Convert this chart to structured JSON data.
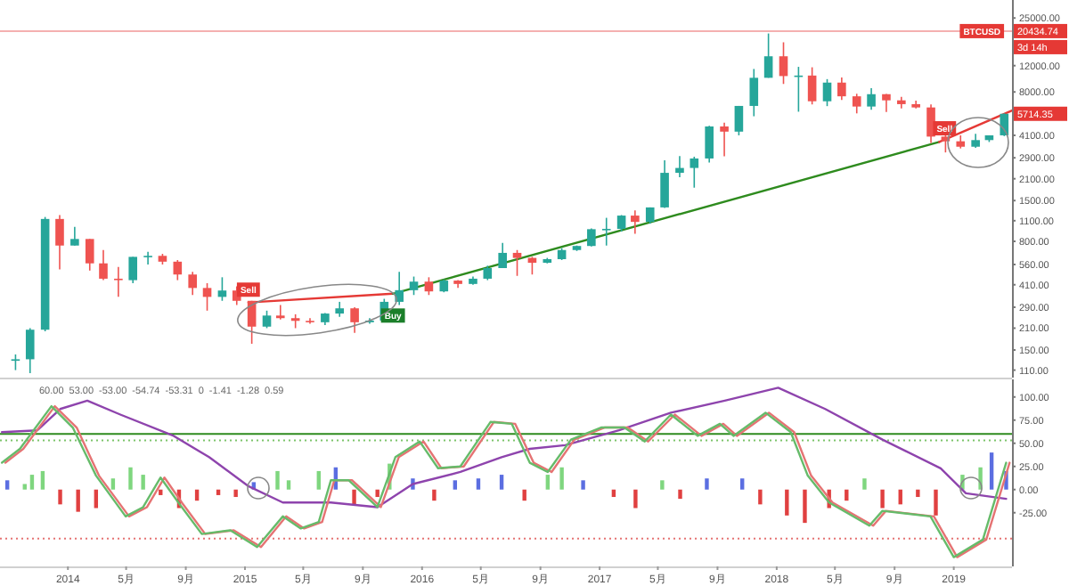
{
  "chart_data": [
    {
      "type": "candlestick",
      "log": true,
      "tick_labels": "y",
      "xlim": [
        "2013-08-14",
        "2019-05-01"
      ],
      "ylim": [
        98,
        33000
      ],
      "yticks": [
        {
          "value": 25000,
          "label": "25000.00"
        },
        {
          "value": 12000,
          "label": "12000.00"
        },
        {
          "value": 8000,
          "label": "8000.00"
        },
        {
          "value": 4100,
          "label": "4100.00"
        },
        {
          "value": 2900,
          "label": "2900.00"
        },
        {
          "value": 2100,
          "label": "2100.00"
        },
        {
          "value": 1500,
          "label": "1500.00"
        },
        {
          "value": 1100,
          "label": "1100.00"
        },
        {
          "value": 800,
          "label": "800.00"
        },
        {
          "value": 560,
          "label": "560.00"
        },
        {
          "value": 410,
          "label": "410.00"
        },
        {
          "value": 290,
          "label": "290.00"
        },
        {
          "value": 210,
          "label": "210.00"
        },
        {
          "value": 150,
          "label": "150.00"
        },
        {
          "value": 110,
          "label": "110.00"
        }
      ],
      "x": [
        "2013-09-15",
        "2013-10-15",
        "2013-11-15",
        "2013-12-15",
        "2014-01-15",
        "2014-02-15",
        "2014-03-15",
        "2014-04-15",
        "2014-05-15",
        "2014-06-15",
        "2014-07-15",
        "2014-08-15",
        "2014-09-15",
        "2014-10-15",
        "2014-11-15",
        "2014-12-15",
        "2015-01-15",
        "2015-02-15",
        "2015-03-15",
        "2015-04-15",
        "2015-05-15",
        "2015-06-15",
        "2015-07-15",
        "2015-08-15",
        "2015-09-15",
        "2015-10-15",
        "2015-11-15",
        "2015-12-15",
        "2016-01-15",
        "2016-02-15",
        "2016-03-15",
        "2016-04-15",
        "2016-05-15",
        "2016-06-15",
        "2016-07-15",
        "2016-08-15",
        "2016-09-15",
        "2016-10-15",
        "2016-11-15",
        "2016-12-15",
        "2017-01-15",
        "2017-02-15",
        "2017-03-15",
        "2017-04-15",
        "2017-05-15",
        "2017-06-15",
        "2017-07-15",
        "2017-08-15",
        "2017-09-15",
        "2017-10-15",
        "2017-11-15",
        "2017-12-15",
        "2018-01-15",
        "2018-02-15",
        "2018-03-15",
        "2018-04-15",
        "2018-05-15",
        "2018-06-15",
        "2018-07-15",
        "2018-08-15",
        "2018-09-15",
        "2018-10-15",
        "2018-11-15",
        "2018-12-15",
        "2019-01-15",
        "2019-02-15",
        "2019-03-15",
        "2019-04-15"
      ],
      "ohlc": [
        [
          127,
          140,
          110,
          130
        ],
        [
          130,
          210,
          105,
          205
        ],
        [
          205,
          1165,
          200,
          1130
        ],
        [
          1130,
          1200,
          520,
          750
        ],
        [
          750,
          1000,
          750,
          830
        ],
        [
          830,
          830,
          510,
          570
        ],
        [
          570,
          700,
          440,
          450
        ],
        [
          450,
          540,
          340,
          440
        ],
        [
          440,
          630,
          420,
          630
        ],
        [
          630,
          680,
          560,
          640
        ],
        [
          640,
          660,
          560,
          585
        ],
        [
          585,
          600,
          440,
          480
        ],
        [
          480,
          500,
          350,
          390
        ],
        [
          390,
          420,
          275,
          340
        ],
        [
          340,
          460,
          320,
          375
        ],
        [
          375,
          400,
          300,
          320
        ],
        [
          320,
          320,
          165,
          215
        ],
        [
          215,
          275,
          210,
          255
        ],
        [
          255,
          300,
          240,
          245
        ],
        [
          245,
          260,
          210,
          235
        ],
        [
          235,
          245,
          225,
          230
        ],
        [
          230,
          265,
          220,
          263
        ],
        [
          263,
          315,
          250,
          285
        ],
        [
          285,
          290,
          195,
          230
        ],
        [
          230,
          245,
          225,
          236
        ],
        [
          236,
          330,
          235,
          315
        ],
        [
          315,
          500,
          300,
          377
        ],
        [
          377,
          465,
          350,
          430
        ],
        [
          430,
          460,
          350,
          370
        ],
        [
          370,
          445,
          365,
          437
        ],
        [
          437,
          440,
          390,
          415
        ],
        [
          415,
          465,
          410,
          450
        ],
        [
          450,
          550,
          440,
          530
        ],
        [
          530,
          780,
          530,
          670
        ],
        [
          670,
          700,
          470,
          620
        ],
        [
          620,
          630,
          480,
          575
        ],
        [
          575,
          620,
          570,
          608
        ],
        [
          608,
          720,
          600,
          700
        ],
        [
          700,
          750,
          690,
          745
        ],
        [
          745,
          975,
          740,
          965
        ],
        [
          965,
          1150,
          750,
          970
        ],
        [
          970,
          1200,
          930,
          1190
        ],
        [
          1190,
          1290,
          900,
          1080
        ],
        [
          1080,
          1350,
          1050,
          1350
        ],
        [
          1350,
          2790,
          1340,
          2300
        ],
        [
          2300,
          2980,
          2150,
          2480
        ],
        [
          2480,
          2950,
          1830,
          2870
        ],
        [
          2870,
          4750,
          2700,
          4700
        ],
        [
          4700,
          4980,
          2970,
          4340
        ],
        [
          4340,
          6450,
          4100,
          6450
        ],
        [
          6450,
          11400,
          5500,
          9950
        ],
        [
          9950,
          19700,
          9950,
          13860
        ],
        [
          13860,
          17200,
          9050,
          10220
        ],
        [
          10220,
          11780,
          5900,
          10300
        ],
        [
          10300,
          11700,
          6600,
          6930
        ],
        [
          6930,
          9750,
          6430,
          9240
        ],
        [
          9240,
          10000,
          7060,
          7480
        ],
        [
          7480,
          7780,
          5750,
          6390
        ],
        [
          6390,
          8490,
          6070,
          7730
        ],
        [
          7730,
          7760,
          5880,
          7030
        ],
        [
          7030,
          7420,
          6200,
          6630
        ],
        [
          6630,
          7000,
          6200,
          6300
        ],
        [
          6300,
          6600,
          3650,
          4020
        ],
        [
          4020,
          4200,
          3150,
          3740
        ],
        [
          3740,
          4100,
          3350,
          3440
        ],
        [
          3440,
          4200,
          3380,
          3810
        ],
        [
          3810,
          4100,
          3700,
          4100
        ],
        [
          4100,
          5750,
          4050,
          5714.35
        ]
      ],
      "series": [
        {
          "type": "line",
          "color": "#e53935",
          "x": [
            "2015-01-08",
            "2015-11-02"
          ],
          "values": [
            312,
            357
          ]
        },
        {
          "type": "line",
          "color": "#2e8b1e",
          "x": [
            "2015-11-02",
            "2018-12-02"
          ],
          "values": [
            357,
            3700
          ]
        },
        {
          "type": "line",
          "color": "#e53935",
          "x": [
            "2018-12-02",
            "2019-05-01"
          ],
          "values": [
            3700,
            6010
          ]
        }
      ],
      "ref_lines": [
        {
          "axis": "y",
          "value": 20434.74,
          "label": "20434.74",
          "color": "#f4b0b0",
          "line_style": "solid"
        }
      ],
      "annotations": [
        {
          "text": "Sell",
          "x": "2015-01-08",
          "y": 380
        },
        {
          "text": "Buy",
          "x": "2015-11-02",
          "y": 255
        },
        {
          "text": "Sell",
          "x": "2018-12-13",
          "y": 4570
        },
        {
          "text": "BTCUSD",
          "x": "2019-02-28",
          "y": 20434.74
        },
        "3d 14h",
        "5714.35"
      ]
    },
    {
      "type": "line",
      "xlim": [
        "2013-08-14",
        "2019-05-01"
      ],
      "ylim": [
        -83,
        119
      ],
      "xticks": [
        {
          "value": "2014-01-01",
          "label": "2014"
        },
        {
          "value": "2014-05-01",
          "label": "5月"
        },
        {
          "value": "2014-09-01",
          "label": "9月"
        },
        {
          "value": "2015-01-01",
          "label": "2015"
        },
        {
          "value": "2015-05-01",
          "label": "5月"
        },
        {
          "value": "2015-09-01",
          "label": "9月"
        },
        {
          "value": "2016-01-01",
          "label": "2016"
        },
        {
          "value": "2016-05-01",
          "label": "5月"
        },
        {
          "value": "2016-09-01",
          "label": "9月"
        },
        {
          "value": "2017-01-01",
          "label": "2017"
        },
        {
          "value": "2017-05-01",
          "label": "5月"
        },
        {
          "value": "2017-09-01",
          "label": "9月"
        },
        {
          "value": "2018-01-01",
          "label": "2018"
        },
        {
          "value": "2018-05-01",
          "label": "5月"
        },
        {
          "value": "2018-09-01",
          "label": "9月"
        },
        {
          "value": "2019-01-01",
          "label": "2019"
        }
      ],
      "yticks": [
        {
          "value": 100,
          "label": "100.00"
        },
        {
          "value": 75,
          "label": "75.00"
        },
        {
          "value": 50,
          "label": "50.00"
        },
        {
          "value": 25,
          "label": "25.00"
        },
        {
          "value": 0,
          "label": "0.00"
        },
        {
          "value": -25,
          "label": "-25.00"
        }
      ],
      "series": [
        {
          "type": "bar",
          "x": [
            "2013-08-29",
            "2013-10-04",
            "2013-10-19",
            "2013-11-10",
            "2013-12-16",
            "2014-01-22",
            "2014-02-28",
            "2014-04-04",
            "2014-05-10",
            "2014-06-05",
            "2014-07-11",
            "2014-08-18",
            "2014-09-24",
            "2014-11-07",
            "2014-12-13",
            "2015-01-19",
            "2015-03-09",
            "2015-04-01",
            "2015-06-02",
            "2015-07-07",
            "2015-08-14",
            "2015-10-01",
            "2015-10-26",
            "2015-12-13",
            "2016-01-26",
            "2016-03-09",
            "2016-04-26",
            "2016-06-13",
            "2016-07-30",
            "2016-09-16",
            "2016-10-15",
            "2016-11-28",
            "2017-01-30",
            "2017-03-16",
            "2017-05-10",
            "2017-06-16",
            "2017-08-10",
            "2017-10-22",
            "2017-11-28",
            "2018-01-22",
            "2018-02-28",
            "2018-04-19",
            "2018-05-25",
            "2018-07-01",
            "2018-08-07",
            "2018-09-13",
            "2018-10-19",
            "2018-11-25",
            "2019-01-19",
            "2019-02-25",
            "2019-03-20",
            "2019-04-19"
          ],
          "values": [
            10,
            6,
            16,
            20,
            -16,
            -24,
            -20,
            12,
            24,
            16,
            -6,
            -20,
            -12,
            -6,
            -8,
            8,
            20,
            10,
            20,
            24,
            -16,
            -8,
            28,
            12,
            -12,
            10,
            12,
            16,
            -12,
            16,
            24,
            10,
            -8,
            -20,
            10,
            -10,
            12,
            12,
            -16,
            -28,
            -36,
            -20,
            -12,
            12,
            -20,
            -16,
            -8,
            -28,
            16,
            24,
            40,
            20
          ],
          "colors": [
            "#5b6ee1",
            "#7fd67f",
            "#7fd67f",
            "#7fd67f",
            "#e04040",
            "#e04040",
            "#e04040",
            "#7fd67f",
            "#7fd67f",
            "#7fd67f",
            "#e04040",
            "#e04040",
            "#e04040",
            "#e04040",
            "#e04040",
            "#5b6ee1",
            "#7fd67f",
            "#7fd67f",
            "#7fd67f",
            "#5b6ee1",
            "#e04040",
            "#e04040",
            "#7fd67f",
            "#5b6ee1",
            "#e04040",
            "#5b6ee1",
            "#5b6ee1",
            "#5b6ee1",
            "#e04040",
            "#7fd67f",
            "#7fd67f",
            "#5b6ee1",
            "#e04040",
            "#e04040",
            "#7fd67f",
            "#e04040",
            "#5b6ee1",
            "#5b6ee1",
            "#e04040",
            "#e04040",
            "#e04040",
            "#e04040",
            "#e04040",
            "#7fd67f",
            "#e04040",
            "#e04040",
            "#e04040",
            "#e04040",
            "#7fd67f",
            "#7fd67f",
            "#5b6ee1",
            "#5b6ee1"
          ]
        },
        {
          "type": "line",
          "color": "#8e44ad",
          "x": [
            "2013-08-18",
            "2013-10-30",
            "2013-12-16",
            "2014-02-10",
            "2014-04-19",
            "2014-08-07",
            "2014-10-19",
            "2015-01-07",
            "2015-03-20",
            "2015-06-27",
            "2015-10-01",
            "2015-12-13",
            "2016-03-20",
            "2016-06-13",
            "2016-08-10",
            "2016-10-22",
            "2017-02-10",
            "2017-05-28",
            "2017-09-16",
            "2018-01-04",
            "2018-04-11",
            "2018-08-07",
            "2018-12-05",
            "2019-01-26",
            "2019-04-19"
          ],
          "values": [
            62,
            64,
            87,
            96,
            81,
            58,
            35,
            4,
            -14,
            -14,
            -19,
            6,
            19,
            35,
            44,
            48,
            64,
            83,
            96,
            110,
            87,
            54,
            23,
            -4,
            -10
          ]
        },
        {
          "type": "line",
          "color": "#e57373",
          "x": [
            "2013-08-25",
            "2013-10-01",
            "2013-12-05",
            "2014-01-19",
            "2014-03-06",
            "2014-05-07",
            "2014-06-13",
            "2014-07-19",
            "2014-08-25",
            "2014-10-11",
            "2014-12-09",
            "2015-02-03",
            "2015-03-27",
            "2015-05-03",
            "2015-06-09",
            "2015-07-04",
            "2015-08-10",
            "2015-10-08",
            "2015-11-14",
            "2016-01-04",
            "2016-02-10",
            "2016-03-27",
            "2016-05-28",
            "2016-07-11",
            "2016-08-18",
            "2016-09-24",
            "2016-11-10",
            "2017-01-11",
            "2017-02-28",
            "2017-04-11",
            "2017-06-05",
            "2017-07-30",
            "2017-09-13",
            "2017-10-11",
            "2017-12-16",
            "2018-02-06",
            "2018-03-13",
            "2018-04-26",
            "2018-07-19",
            "2018-08-14",
            "2018-11-21",
            "2019-01-08",
            "2019-03-09",
            "2019-04-26"
          ],
          "values": [
            29,
            44,
            90,
            67,
            15,
            -29,
            -19,
            13,
            -15,
            -48,
            -44,
            -62,
            -29,
            -42,
            -35,
            10,
            10,
            -19,
            35,
            52,
            23,
            25,
            73,
            71,
            29,
            19,
            54,
            67,
            67,
            52,
            81,
            58,
            71,
            58,
            83,
            62,
            15,
            -14,
            -39,
            -23,
            -29,
            -73,
            -54,
            29
          ]
        },
        {
          "type": "line",
          "color": "#66bb6a",
          "x": [
            "2013-08-18",
            "2013-09-24",
            "2013-11-28",
            "2014-01-11",
            "2014-02-28",
            "2014-04-30",
            "2014-06-05",
            "2014-07-11",
            "2014-08-18",
            "2014-10-04",
            "2014-12-02",
            "2015-01-26",
            "2015-03-20",
            "2015-04-26",
            "2015-06-02",
            "2015-06-27",
            "2015-08-03",
            "2015-10-01",
            "2015-11-07",
            "2015-12-27",
            "2016-02-03",
            "2016-03-20",
            "2016-05-21",
            "2016-07-04",
            "2016-08-10",
            "2016-09-16",
            "2016-11-03",
            "2017-01-04",
            "2017-02-21",
            "2017-04-04",
            "2017-05-28",
            "2017-07-22",
            "2017-09-06",
            "2017-10-04",
            "2017-12-09",
            "2018-01-30",
            "2018-03-06",
            "2018-04-19",
            "2018-07-11",
            "2018-08-07",
            "2018-11-14",
            "2019-01-01",
            "2019-03-02",
            "2019-04-19"
          ],
          "values": [
            29,
            44,
            90,
            67,
            15,
            -29,
            -19,
            13,
            -15,
            -48,
            -44,
            -62,
            -29,
            -42,
            -35,
            10,
            10,
            -19,
            35,
            52,
            23,
            25,
            73,
            71,
            29,
            19,
            54,
            67,
            67,
            52,
            81,
            58,
            71,
            58,
            83,
            62,
            15,
            -14,
            -39,
            -23,
            -29,
            -73,
            -54,
            29
          ]
        }
      ],
      "ref_lines": [
        {
          "axis": "y",
          "value": 60,
          "color": "#2e8b1e",
          "line_style": "solid"
        },
        {
          "axis": "y",
          "value": 53,
          "color": "#7cc46a",
          "line_style": "dotted"
        },
        {
          "axis": "y",
          "value": -53,
          "color": "#e57373",
          "line_style": "dotted"
        }
      ],
      "annotations": [
        "60.00",
        "53.00",
        "-53.00",
        "-54.74",
        "-53.31",
        "0",
        "-1.41",
        "-1.28",
        "0.59"
      ]
    }
  ]
}
